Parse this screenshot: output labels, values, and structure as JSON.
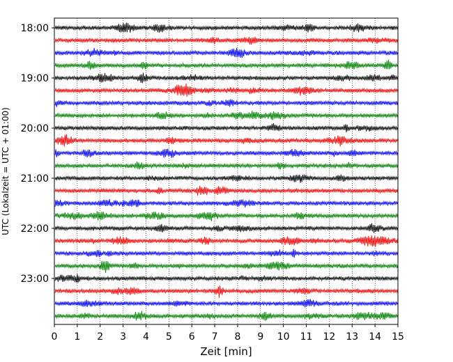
{
  "chart_data": {
    "type": "line",
    "title": "",
    "xlabel": "Zeit  [min]",
    "ylabel": "UTC (Lokalzeit = UTC + 01:00)",
    "xlim": [
      0,
      15
    ],
    "x_ticks": [
      "0",
      "1",
      "2",
      "3",
      "4",
      "5",
      "6",
      "7",
      "8",
      "9",
      "10",
      "11",
      "12",
      "13",
      "14",
      "15"
    ],
    "y_ticks": [
      "18:00",
      "19:00",
      "20:00",
      "21:00",
      "22:00",
      "23:00"
    ],
    "grid": "vertical dotted at each minute",
    "trace_colors": [
      "#000000",
      "#ff0000",
      "#0000ff",
      "#008000"
    ],
    "rows": [
      {
        "time": "18:00",
        "color": "#000000"
      },
      {
        "time": "18:15",
        "color": "#ff0000"
      },
      {
        "time": "18:30",
        "color": "#0000ff"
      },
      {
        "time": "18:45",
        "color": "#008000"
      },
      {
        "time": "19:00",
        "color": "#000000"
      },
      {
        "time": "19:15",
        "color": "#ff0000"
      },
      {
        "time": "19:30",
        "color": "#0000ff"
      },
      {
        "time": "19:45",
        "color": "#008000"
      },
      {
        "time": "20:00",
        "color": "#000000"
      },
      {
        "time": "20:15",
        "color": "#ff0000"
      },
      {
        "time": "20:30",
        "color": "#0000ff"
      },
      {
        "time": "20:45",
        "color": "#008000"
      },
      {
        "time": "21:00",
        "color": "#000000"
      },
      {
        "time": "21:15",
        "color": "#ff0000"
      },
      {
        "time": "21:30",
        "color": "#0000ff"
      },
      {
        "time": "21:45",
        "color": "#008000"
      },
      {
        "time": "22:00",
        "color": "#000000"
      },
      {
        "time": "22:15",
        "color": "#ff0000"
      },
      {
        "time": "22:30",
        "color": "#0000ff"
      },
      {
        "time": "22:45",
        "color": "#008000"
      },
      {
        "time": "23:00",
        "color": "#000000"
      },
      {
        "time": "23:15",
        "color": "#ff0000"
      },
      {
        "time": "23:30",
        "color": "#0000ff"
      },
      {
        "time": "23:45",
        "color": "#008000"
      }
    ]
  }
}
